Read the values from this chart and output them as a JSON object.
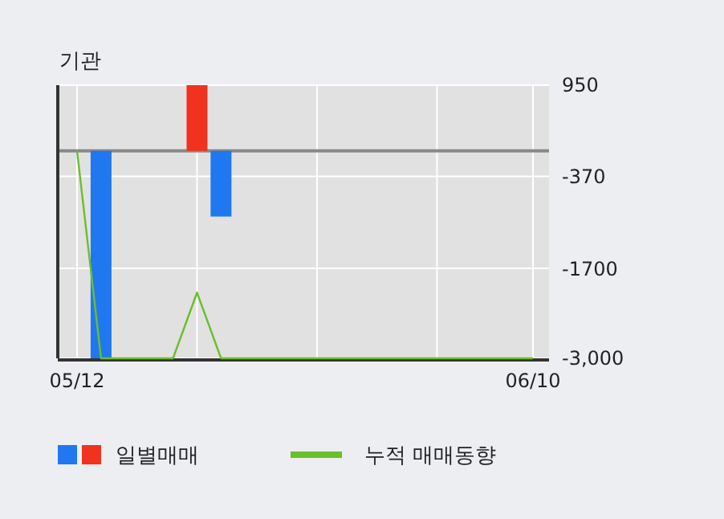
{
  "chart_data": {
    "type": "bar",
    "title": "기관",
    "categories": [
      "05/12",
      null,
      null,
      null,
      null,
      null,
      null,
      null,
      null,
      null,
      null,
      null,
      null,
      null,
      null,
      null,
      null,
      null,
      null,
      "06/10"
    ],
    "series": [
      {
        "name": "일별매매",
        "colors": [
          "#1f78f0",
          "#1f78f0",
          "#1f78f0",
          "#1f78f0",
          "#1f78f0",
          "#f0321e",
          "#1f78f0",
          "#1f78f0",
          "#1f78f0",
          "#1f78f0",
          "#1f78f0",
          "#1f78f0",
          "#1f78f0",
          "#1f78f0",
          "#1f78f0",
          "#1f78f0",
          "#1f78f0",
          "#1f78f0",
          "#1f78f0",
          "#1f78f0"
        ],
        "values": [
          0,
          -3000,
          0,
          0,
          0,
          950,
          -950,
          0,
          0,
          0,
          0,
          0,
          0,
          0,
          0,
          0,
          0,
          0,
          0,
          0
        ]
      },
      {
        "name": "누적 매매동향",
        "type": "line",
        "color": "#6abf2a",
        "values": [
          0,
          -3000,
          -3000,
          -3000,
          -3000,
          -2050,
          -3000,
          -3000,
          -3000,
          -3000,
          -3000,
          -3000,
          -3000,
          -3000,
          -3000,
          -3000,
          -3000,
          -3000,
          -3000,
          -3000
        ]
      }
    ],
    "ylim": [
      -3000,
      950
    ],
    "yticks": [
      950,
      -370,
      -1700,
      {
        "value": -3000,
        "label": "-3,000"
      }
    ],
    "grid": true,
    "legend": "bottom",
    "marker": "none",
    "line_style": "solid"
  }
}
